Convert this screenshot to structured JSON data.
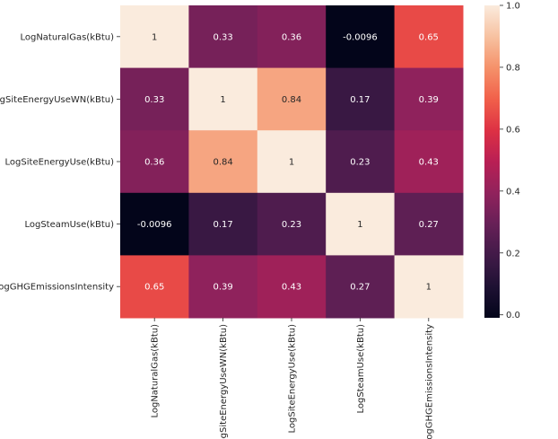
{
  "chart_data": {
    "type": "heatmap",
    "title": "",
    "xlabel": "",
    "ylabel": "",
    "x_labels": [
      "LogNaturalGas(kBtu)",
      "LogSiteEnergyUseWN(kBtu)",
      "LogSiteEnergyUse(kBtu)",
      "LogSteamUse(kBtu)",
      "LogGHGEmissionsIntensity"
    ],
    "y_labels": [
      "LogNaturalGas(kBtu)",
      "LogSiteEnergyUseWN(kBtu)",
      "LogSiteEnergyUse(kBtu)",
      "LogSteamUse(kBtu)",
      "LogGHGEmissionsIntensity"
    ],
    "values": [
      [
        1,
        0.33,
        0.36,
        -0.0096,
        0.65
      ],
      [
        0.33,
        1,
        0.84,
        0.17,
        0.39
      ],
      [
        0.36,
        0.84,
        1,
        0.23,
        0.43
      ],
      [
        -0.0096,
        0.17,
        0.23,
        1,
        0.27
      ],
      [
        0.65,
        0.39,
        0.43,
        0.27,
        1
      ]
    ],
    "annotations": [
      [
        "1",
        "0.33",
        "0.36",
        "-0.0096",
        "0.65"
      ],
      [
        "0.33",
        "1",
        "0.84",
        "0.17",
        "0.39"
      ],
      [
        "0.36",
        "0.84",
        "1",
        "0.23",
        "0.43"
      ],
      [
        "-0.0096",
        "0.17",
        "0.23",
        "1",
        "0.27"
      ],
      [
        "0.65",
        "0.39",
        "0.43",
        "0.27",
        "1"
      ]
    ],
    "colormap": "rocket",
    "vmin": -0.0096,
    "vmax": 1,
    "colorbar": {
      "ticks": [
        0.0,
        0.2,
        0.4,
        0.6,
        0.8,
        1.0
      ],
      "tick_labels": [
        "0.0",
        "0.2",
        "0.4",
        "0.6",
        "0.8",
        "1.0"
      ]
    },
    "text_colors": {
      "dark": "#262626",
      "light": "#ffffff"
    }
  }
}
